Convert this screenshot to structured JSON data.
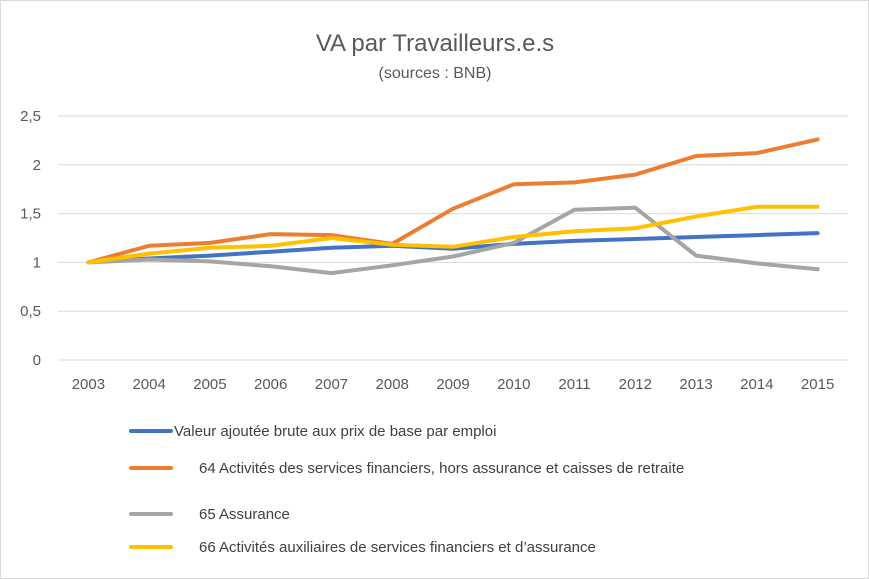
{
  "chart_data": {
    "type": "line",
    "title": "VA par Travailleurs.e.s",
    "subtitle": "(sources : BNB)",
    "xlabel": "",
    "ylabel": "",
    "ylim": [
      0,
      2.5
    ],
    "yticks": [
      "0",
      "0,5",
      "1",
      "1,5",
      "2",
      "2,5"
    ],
    "ytick_values": [
      0,
      0.5,
      1,
      1.5,
      2,
      2.5
    ],
    "grid": true,
    "legend_position": "bottom",
    "categories": [
      "2003",
      "2004",
      "2005",
      "2006",
      "2007",
      "2008",
      "2009",
      "2010",
      "2011",
      "2012",
      "2013",
      "2014",
      "2015"
    ],
    "series": [
      {
        "name": "Valeur ajoutée brute aux prix de base par emploi",
        "color": "#4472c4",
        "values": [
          1.0,
          1.04,
          1.07,
          1.11,
          1.15,
          1.17,
          1.14,
          1.19,
          1.22,
          1.24,
          1.26,
          1.28,
          1.3
        ]
      },
      {
        "name": "64 Activités des services financiers, hors assurance et caisses de retraite",
        "color": "#ed7d31",
        "values": [
          1.0,
          1.17,
          1.2,
          1.29,
          1.28,
          1.19,
          1.55,
          1.8,
          1.82,
          1.9,
          2.09,
          2.12,
          2.26
        ]
      },
      {
        "name": "65 Assurance",
        "color": "#a5a5a5",
        "values": [
          1.0,
          1.03,
          1.01,
          0.96,
          0.89,
          0.97,
          1.06,
          1.2,
          1.54,
          1.56,
          1.07,
          0.99,
          0.93
        ]
      },
      {
        "name": "66 Activités auxiliaires de services financiers et d’assurance",
        "color": "#ffc000",
        "values": [
          1.0,
          1.09,
          1.15,
          1.17,
          1.25,
          1.18,
          1.16,
          1.26,
          1.32,
          1.35,
          1.47,
          1.57,
          1.57
        ]
      }
    ]
  }
}
